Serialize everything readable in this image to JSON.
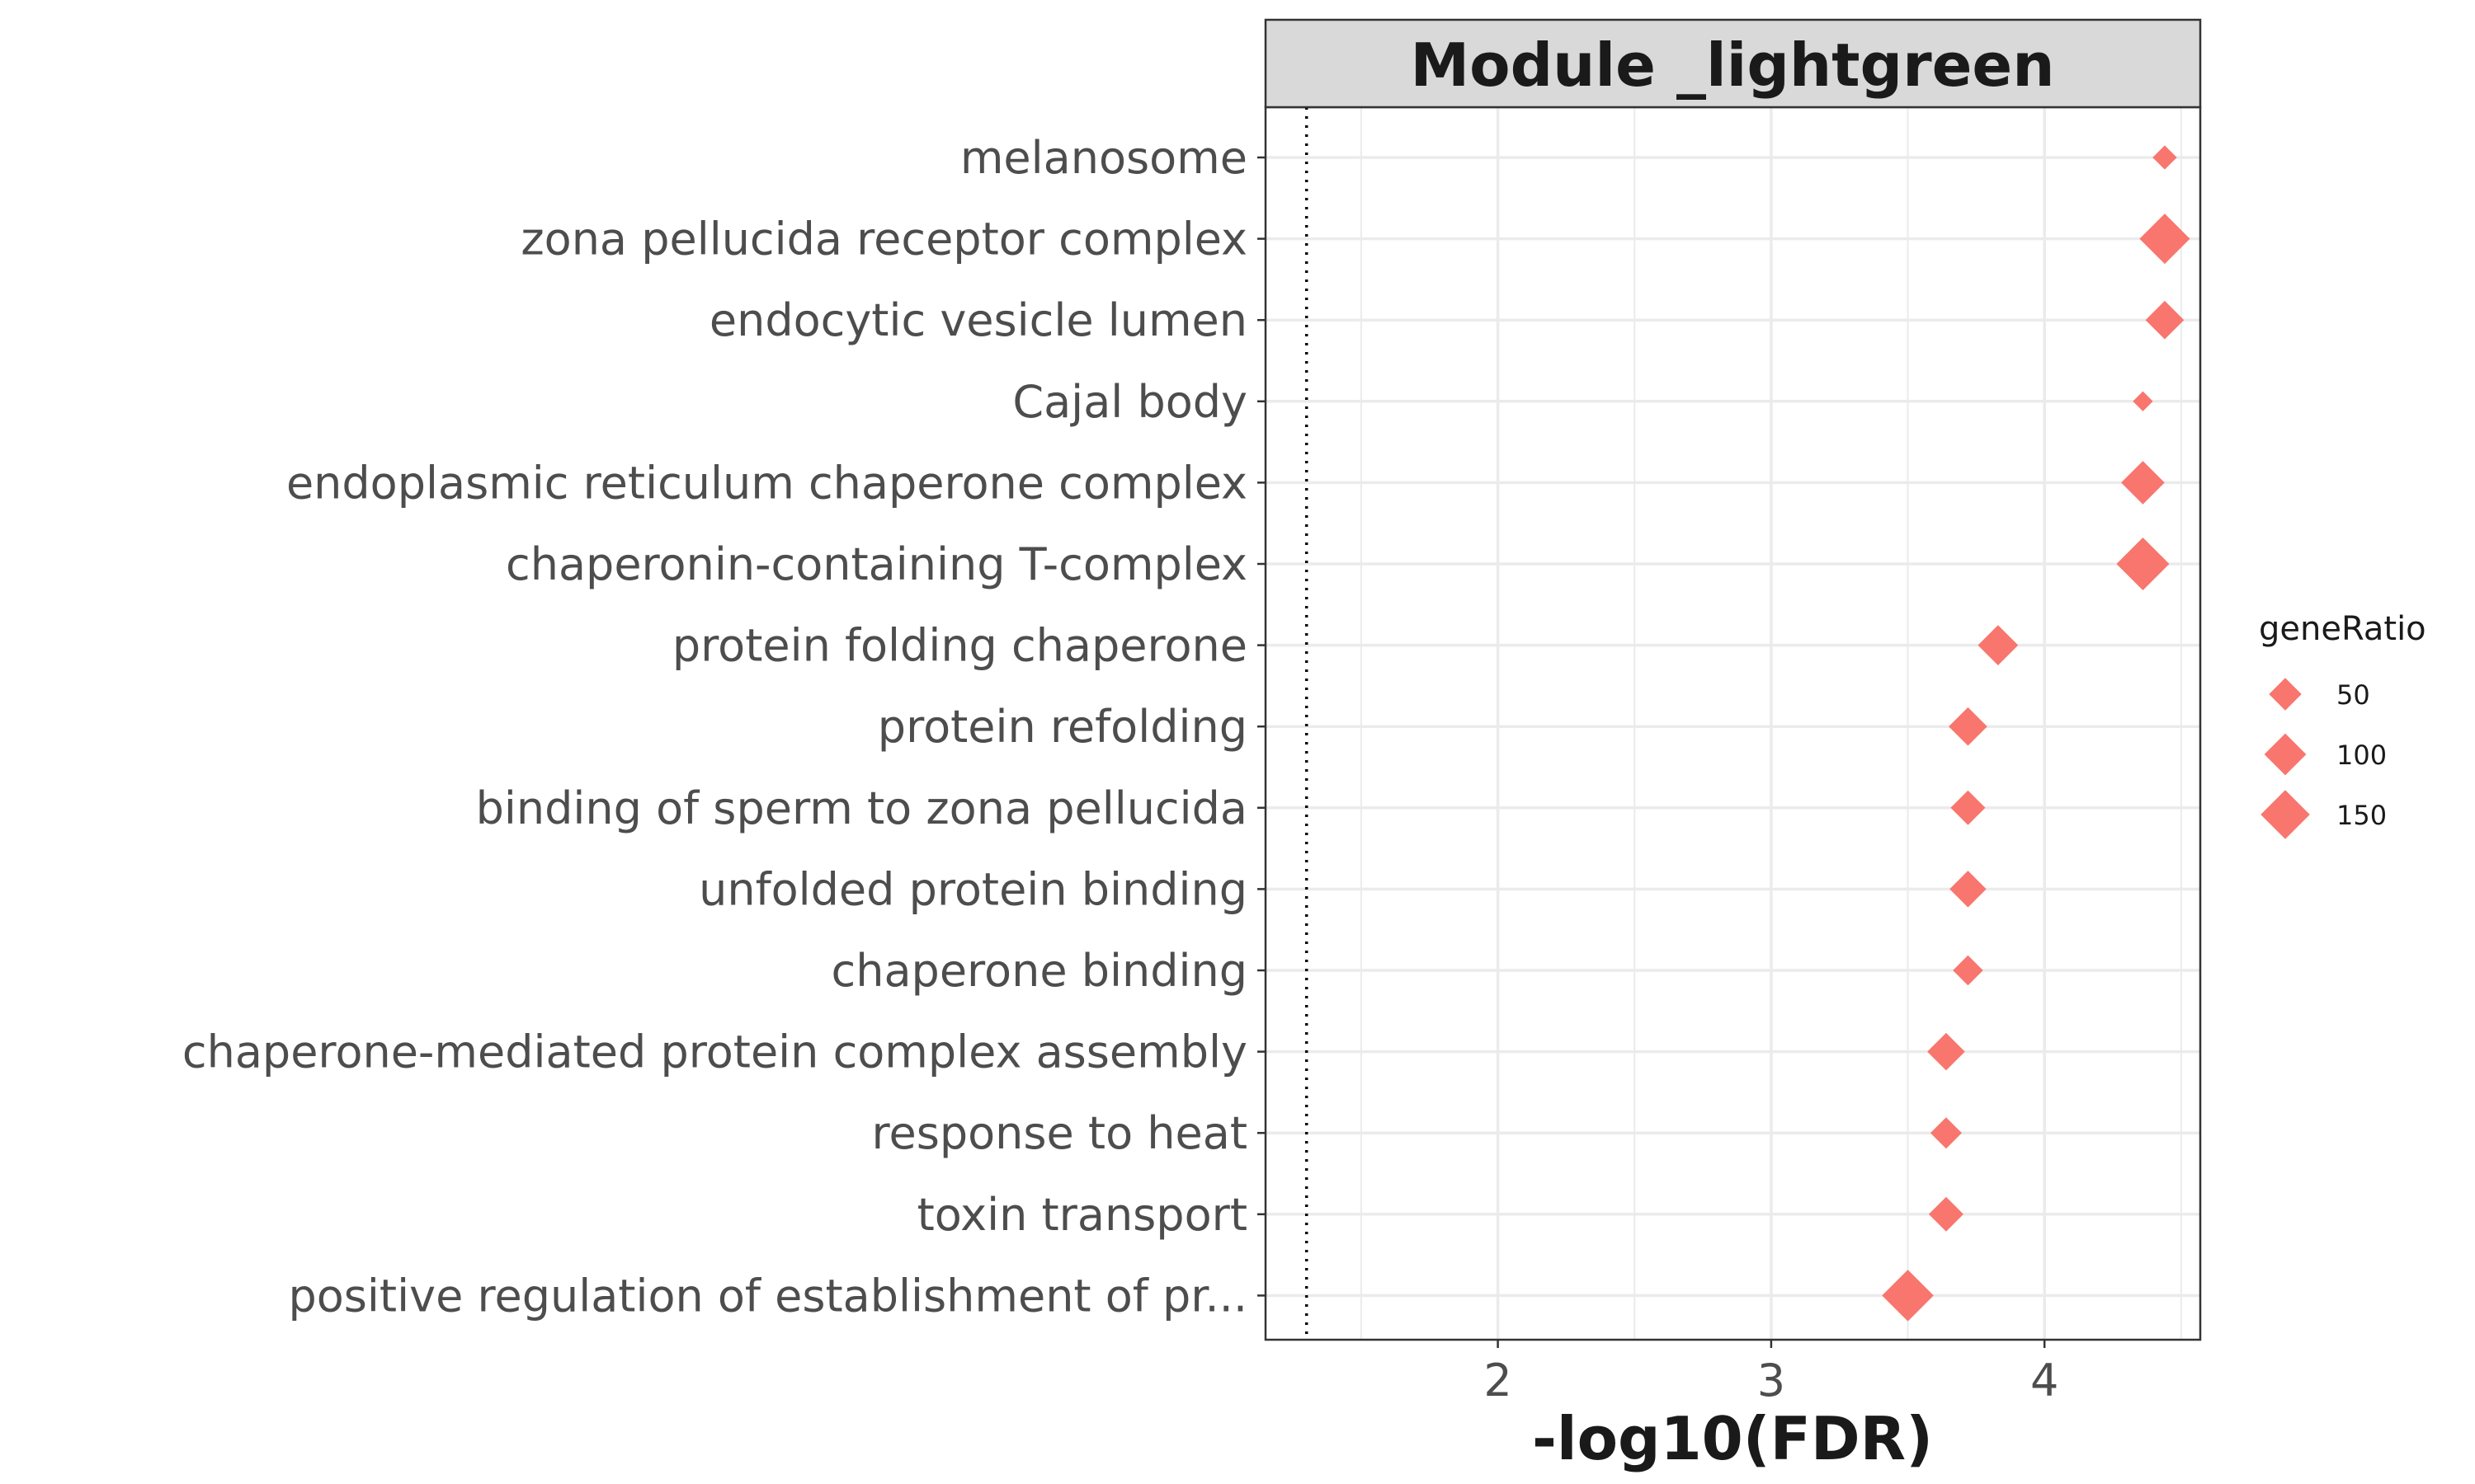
{
  "chart_data": {
    "type": "scatter",
    "title": "Module _lightgreen",
    "xlabel": "-log10(FDR)",
    "ylabel": "",
    "xlim": [
      1.15,
      4.57
    ],
    "xticks": [
      2,
      3,
      4
    ],
    "reference_line": 1.3,
    "grid": true,
    "marker": "diamond",
    "colors": {
      "point": "#F8766D",
      "grid": "#ebebeb",
      "strip_bg": "#d9d9d9",
      "frame": "#333333",
      "reference_line": "#000000"
    },
    "categories": [
      "melanosome",
      "zona pellucida receptor complex",
      "endocytic vesicle lumen",
      "Cajal body",
      "endoplasmic reticulum chaperone complex",
      "chaperonin-containing T-complex",
      "protein folding chaperone",
      "protein refolding",
      "binding of sperm to zona pellucida",
      "unfolded protein binding",
      "chaperone binding",
      "chaperone-mediated protein complex assembly",
      "response to heat",
      "toxin transport",
      "positive regulation of establishment of pr..."
    ],
    "series": [
      {
        "x": [
          4.44,
          4.44,
          4.44,
          4.36,
          4.36,
          4.36,
          3.83,
          3.72,
          3.72,
          3.72,
          3.72,
          3.64,
          3.64,
          3.64,
          3.5
        ],
        "size": [
          20,
          160,
          80,
          10,
          110,
          180,
          90,
          80,
          60,
          70,
          40,
          75,
          45,
          60,
          170
        ]
      }
    ],
    "legend": {
      "title": "geneRatio",
      "position": "right",
      "entries": [
        {
          "label": "50",
          "size": 50
        },
        {
          "label": "100",
          "size": 100
        },
        {
          "label": "150",
          "size": 150
        }
      ]
    }
  }
}
